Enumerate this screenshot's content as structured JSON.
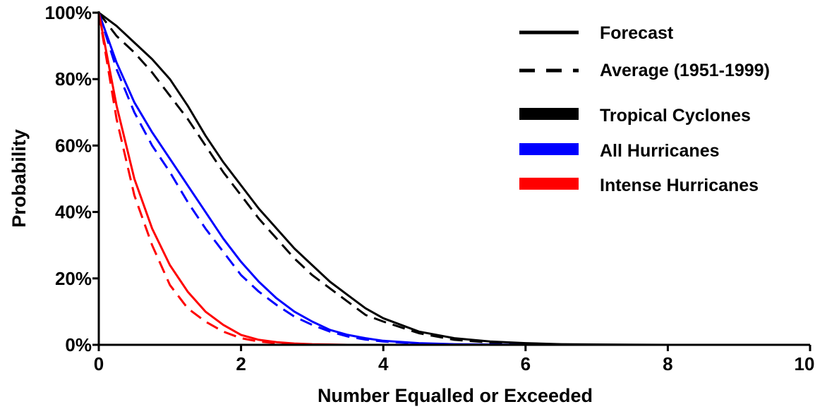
{
  "chart_data": {
    "type": "line",
    "xlabel": "Number Equalled or Exceeded",
    "ylabel": "Probability",
    "xlim": [
      0,
      10
    ],
    "ylim": [
      0,
      100
    ],
    "x_ticks": [
      "0",
      "2",
      "4",
      "6",
      "8",
      "10"
    ],
    "y_ticks": [
      "0%",
      "20%",
      "40%",
      "60%",
      "80%",
      "100%"
    ],
    "grid": false,
    "legend_position": "top-right",
    "legend": {
      "style_entries": [
        {
          "label": "Forecast",
          "line": "solid"
        },
        {
          "label": "Average (1951-1999)",
          "line": "dashed"
        }
      ],
      "color_entries": [
        {
          "label": "Tropical Cyclones",
          "color": "#000000"
        },
        {
          "label": "All Hurricanes",
          "color": "#0000ff"
        },
        {
          "label": "Intense Hurricanes",
          "color": "#ff0000"
        }
      ]
    },
    "x": [
      0,
      0.25,
      0.5,
      0.75,
      1,
      1.25,
      1.5,
      1.75,
      2,
      2.25,
      2.5,
      2.75,
      3,
      3.25,
      3.5,
      3.75,
      4,
      4.5,
      5,
      5.5,
      6,
      6.5,
      7,
      8,
      9,
      10
    ],
    "series": [
      {
        "category": "Tropical Cyclones",
        "style": "solid",
        "color": "#000000",
        "values": [
          100,
          96,
          91,
          86,
          80,
          72,
          63,
          55,
          48,
          41,
          35,
          29,
          24,
          19,
          15,
          11,
          8,
          4,
          2,
          1,
          0.5,
          0.2,
          0.1,
          0,
          0,
          0
        ]
      },
      {
        "category": "Tropical Cyclones",
        "style": "dashed",
        "color": "#000000",
        "values": [
          100,
          93,
          88,
          82,
          75,
          68,
          60,
          52,
          45,
          38,
          32,
          26,
          21,
          17,
          13,
          9,
          7,
          3.5,
          1.5,
          0.7,
          0.3,
          0.1,
          0,
          0,
          0,
          0
        ]
      },
      {
        "category": "All Hurricanes",
        "style": "solid",
        "color": "#0000ff",
        "values": [
          100,
          85,
          73,
          64,
          56,
          48,
          40,
          32,
          25,
          19,
          14,
          10,
          7,
          4.5,
          3,
          2,
          1.2,
          0.5,
          0.2,
          0.1,
          0,
          0,
          0,
          0,
          0,
          0
        ]
      },
      {
        "category": "All Hurricanes",
        "style": "dashed",
        "color": "#0000ff",
        "values": [
          100,
          83,
          70,
          60,
          52,
          43,
          35,
          28,
          21,
          16,
          12,
          8.5,
          6,
          4,
          2.5,
          1.6,
          1,
          0.4,
          0.1,
          0,
          0,
          0,
          0,
          0,
          0,
          0
        ]
      },
      {
        "category": "Intense Hurricanes",
        "style": "solid",
        "color": "#ff0000",
        "values": [
          100,
          72,
          50,
          35,
          24,
          16,
          10,
          6,
          3,
          1.5,
          0.8,
          0.4,
          0.2,
          0.1,
          0,
          0,
          0,
          0,
          0,
          0,
          0,
          0,
          0,
          0,
          0,
          0
        ]
      },
      {
        "category": "Intense Hurricanes",
        "style": "dashed",
        "color": "#ff0000",
        "values": [
          100,
          68,
          45,
          30,
          18,
          11,
          7,
          4,
          2,
          1,
          0.5,
          0.3,
          0.1,
          0,
          0,
          0,
          0,
          0,
          0,
          0,
          0,
          0,
          0,
          0,
          0,
          0
        ]
      }
    ]
  }
}
